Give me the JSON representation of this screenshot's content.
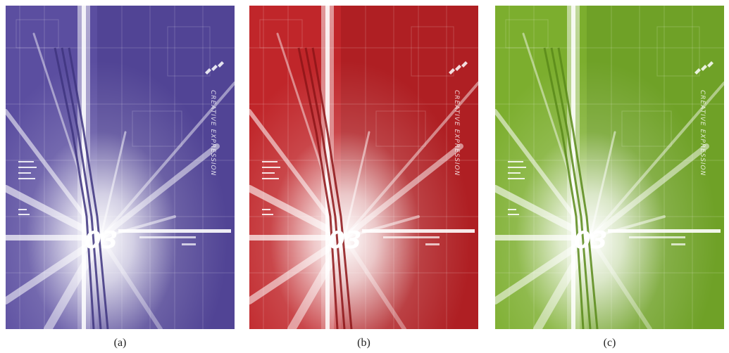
{
  "figures": [
    {
      "id": "a",
      "caption": "(a)",
      "tint": "#5b4ea0",
      "tint_dark": "#3f3580",
      "tint_light": "#8c83c6"
    },
    {
      "id": "b",
      "caption": "(b)",
      "tint": "#c0262a",
      "tint_dark": "#8e1518",
      "tint_light": "#e07a78"
    },
    {
      "id": "c",
      "caption": "(c)",
      "tint": "#7cae2e",
      "tint_dark": "#5a8a1a",
      "tint_light": "#b5d67e"
    }
  ],
  "artwork_text": {
    "vertical_label": "CREATIVE EXPRESSION",
    "number": "03"
  }
}
